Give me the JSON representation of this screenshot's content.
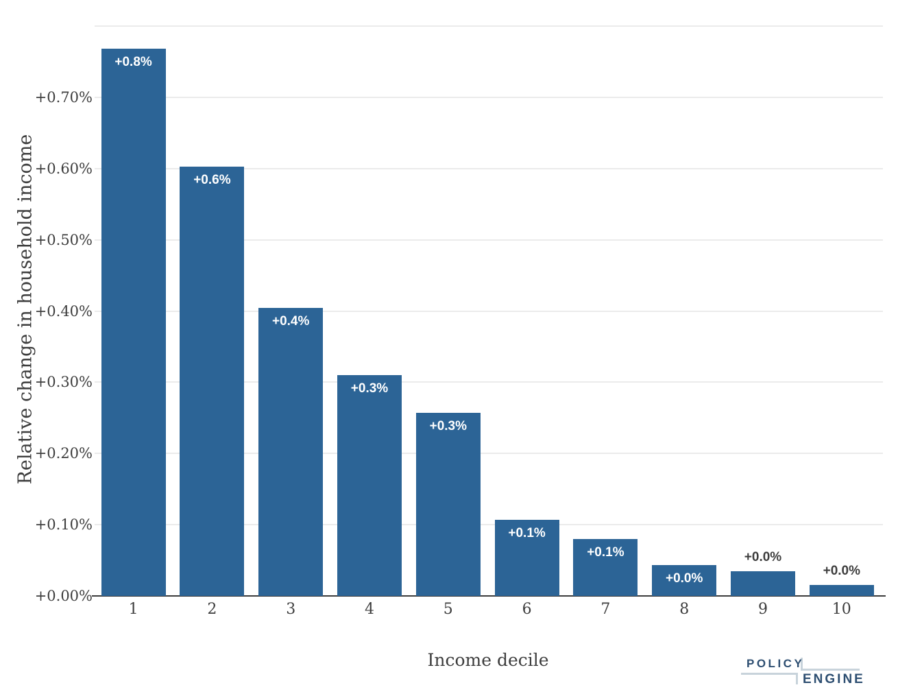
{
  "chart_data": {
    "type": "bar",
    "title": "",
    "xlabel": "Income decile",
    "ylabel": "Relative change in household income",
    "categories": [
      "1",
      "2",
      "3",
      "4",
      "5",
      "6",
      "7",
      "8",
      "9",
      "10"
    ],
    "values": [
      0.768,
      0.603,
      0.404,
      0.31,
      0.257,
      0.107,
      0.08,
      0.043,
      0.035,
      0.015
    ],
    "bar_labels": [
      "+0.8%",
      "+0.6%",
      "+0.4%",
      "+0.3%",
      "+0.3%",
      "+0.1%",
      "+0.1%",
      "+0.0%",
      "+0.0%",
      "+0.0%"
    ],
    "label_placement": [
      "inside",
      "inside",
      "inside",
      "inside",
      "inside",
      "inside",
      "inside",
      "inside",
      "outside",
      "outside"
    ],
    "y_ticks": [
      "+0.00%",
      "+0.10%",
      "+0.20%",
      "+0.30%",
      "+0.40%",
      "+0.50%",
      "+0.60%",
      "+0.70%"
    ],
    "ylim": [
      0,
      0.8
    ],
    "grid": true,
    "legend": "none",
    "colors": {
      "bar": "#2c6496",
      "grid": "#ebebeb",
      "axis_line": "#3b3b3b",
      "tick_text": "#3d3d3d",
      "inside_label": "#ffffff",
      "outside_label": "#3d3d3d"
    }
  },
  "branding": {
    "logo_top": "POLICY",
    "logo_bottom": "ENGINE",
    "navy": "#2d4e71",
    "light_line": "#c8d3db"
  }
}
